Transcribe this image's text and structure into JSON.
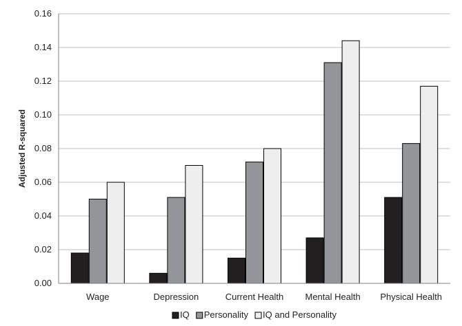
{
  "chart_data": {
    "type": "bar",
    "title": "",
    "xlabel": "",
    "ylabel": "Adjusted R-squared",
    "ylim": [
      0,
      0.16
    ],
    "yticks": [
      "0.00",
      "0.02",
      "0.04",
      "0.06",
      "0.08",
      "0.10",
      "0.12",
      "0.14",
      "0.16"
    ],
    "categories": [
      "Wage",
      "Depression",
      "Current Health",
      "Mental Health",
      "Physical Health"
    ],
    "series": [
      {
        "name": "IQ",
        "color": "#231f20",
        "values": [
          0.018,
          0.006,
          0.015,
          0.027,
          0.051
        ]
      },
      {
        "name": "Personality",
        "color": "#939598",
        "values": [
          0.05,
          0.051,
          0.072,
          0.131,
          0.083
        ]
      },
      {
        "name": "IQ and Personality",
        "color": "#eeeeee",
        "values": [
          0.06,
          0.07,
          0.08,
          0.144,
          0.117
        ]
      }
    ],
    "grid": true,
    "legend_position": "bottom"
  }
}
